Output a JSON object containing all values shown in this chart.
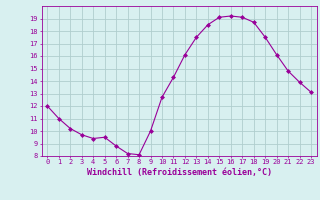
{
  "x": [
    0,
    1,
    2,
    3,
    4,
    5,
    6,
    7,
    8,
    9,
    10,
    11,
    12,
    13,
    14,
    15,
    16,
    17,
    18,
    19,
    20,
    21,
    22,
    23
  ],
  "y": [
    12,
    11,
    10.2,
    9.7,
    9.4,
    9.5,
    8.8,
    8.2,
    8.1,
    10.0,
    12.7,
    14.3,
    16.1,
    17.5,
    18.5,
    19.1,
    19.2,
    19.1,
    18.7,
    17.5,
    16.1,
    14.8,
    13.9,
    13.1
  ],
  "line_color": "#990099",
  "marker": "D",
  "marker_size": 2,
  "bg_color": "#d8f0f0",
  "grid_color": "#b0cece",
  "xlabel": "Windchill (Refroidissement éolien,°C)",
  "xlabel_color": "#990099",
  "tick_color": "#990099",
  "ylim": [
    8,
    20
  ],
  "yticks": [
    8,
    9,
    10,
    11,
    12,
    13,
    14,
    15,
    16,
    17,
    18,
    19
  ],
  "xticks": [
    0,
    1,
    2,
    3,
    4,
    5,
    6,
    7,
    8,
    9,
    10,
    11,
    12,
    13,
    14,
    15,
    16,
    17,
    18,
    19,
    20,
    21,
    22,
    23
  ],
  "xlim": [
    -0.5,
    23.5
  ],
  "tick_fontsize": 5.0,
  "xlabel_fontsize": 6.0
}
